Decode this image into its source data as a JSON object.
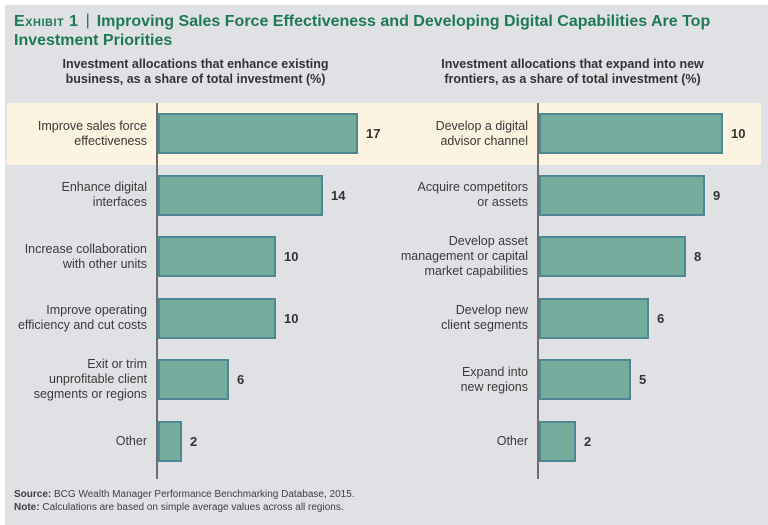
{
  "page": {
    "exhibit_label": "Exhibit 1",
    "divider": "|",
    "title": "Improving Sales Force Effectiveness and Developing Digital Capabilities Are Top\nInvestment Priorities",
    "source_label": "Source:",
    "source_text": " BCG Wealth Manager Performance Benchmarking Database, 2015.",
    "note_label": "Note:",
    "note_text": " Calculations are based on simple average values across all regions."
  },
  "colors": {
    "title_green": "#1e7a52",
    "bar_fill": "#75ac9e",
    "bar_border": "#4e8894",
    "highlight_band": "#fcf3e0",
    "canvas_bg": "#dfe1e5",
    "text_dark": "#3a3a3a",
    "axis_gray": "#6e6e6e"
  },
  "chart_data": [
    {
      "type": "bar",
      "orientation": "horizontal",
      "title": "Investment allocations that enhance existing\nbusiness, as a share of total investment (%)",
      "xlabel": "Share of total investment (%)",
      "xmax": 17,
      "grid": false,
      "legend": false,
      "highlighted_row_index": 0,
      "categories": [
        "Improve sales force\neffectiveness",
        "Enhance digital\ninterfaces",
        "Increase collaboration\nwith other units",
        "Improve operating\nefficiency and cut costs",
        "Exit or trim\nunprofitable client\nsegments or regions",
        "Other"
      ],
      "values": [
        17,
        14,
        10,
        10,
        6,
        2
      ]
    },
    {
      "type": "bar",
      "orientation": "horizontal",
      "title": "Investment allocations that expand into new\nfrontiers, as a share of total investment (%)",
      "xlabel": "Share of total investment (%)",
      "xmax": 10,
      "grid": false,
      "legend": false,
      "highlighted_row_index": 0,
      "categories": [
        "Develop a digital\nadvisor channel",
        "Acquire competitors\nor assets",
        "Develop asset\nmanagement or capital\nmarket capabilities",
        "Develop new\nclient segments",
        "Expand into\nnew regions",
        "Other"
      ],
      "values": [
        10,
        9,
        8,
        6,
        5,
        2
      ]
    }
  ]
}
